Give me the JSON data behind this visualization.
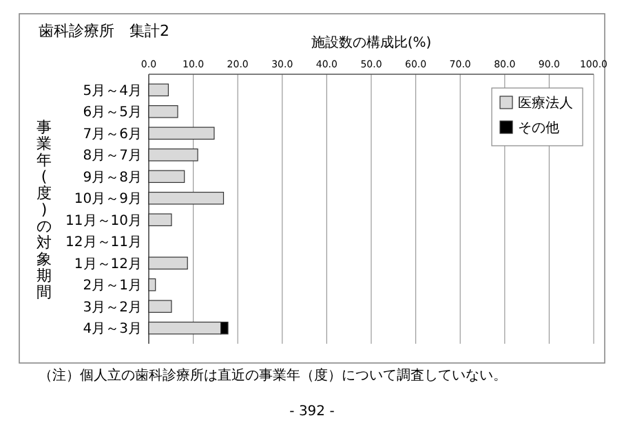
{
  "chart_data": {
    "type": "bar",
    "title": "歯科診療所　集計2",
    "xlabel": "施設数の構成比(%)",
    "ylabel": "事業年(度)の対象期間",
    "orientation": "horizontal",
    "stacked": true,
    "categories": [
      "5月～4月",
      "6月～5月",
      "7月～6月",
      "8月～7月",
      "9月～8月",
      "10月～9月",
      "11月～10月",
      "12月～11月",
      "1月～12月",
      "2月～1月",
      "3月～2月",
      "4月～3月"
    ],
    "series": [
      {
        "name": "医療法人",
        "color": "#d9d9d9",
        "values": [
          4.4,
          6.5,
          14.7,
          11.0,
          8.0,
          16.8,
          5.1,
          0,
          8.7,
          1.5,
          5.1,
          16.2
        ]
      },
      {
        "name": "その他",
        "color": "#000000",
        "values": [
          0,
          0,
          0,
          0,
          0,
          0,
          0,
          0,
          0,
          0,
          0,
          1.6
        ]
      }
    ],
    "xlim": [
      0,
      100
    ],
    "xticks": [
      {
        "value": 0,
        "label": "0.0"
      },
      {
        "value": 10,
        "label": "10.0"
      },
      {
        "value": 20,
        "label": "20.0"
      },
      {
        "value": 30,
        "label": "30.0"
      },
      {
        "value": 40,
        "label": "40.0"
      },
      {
        "value": 50,
        "label": "50.0"
      },
      {
        "value": 60,
        "label": "60.0"
      },
      {
        "value": 70,
        "label": "70.0"
      },
      {
        "value": 80,
        "label": "80.0"
      },
      {
        "value": 90,
        "label": "90.0"
      },
      {
        "value": 100,
        "label": "100.0"
      }
    ],
    "grid": "x",
    "legend": "top right",
    "annotations": [
      "（注）個人立の歯科診療所は直近の事業年（度）について調査していない。",
      "- 392 -"
    ]
  }
}
